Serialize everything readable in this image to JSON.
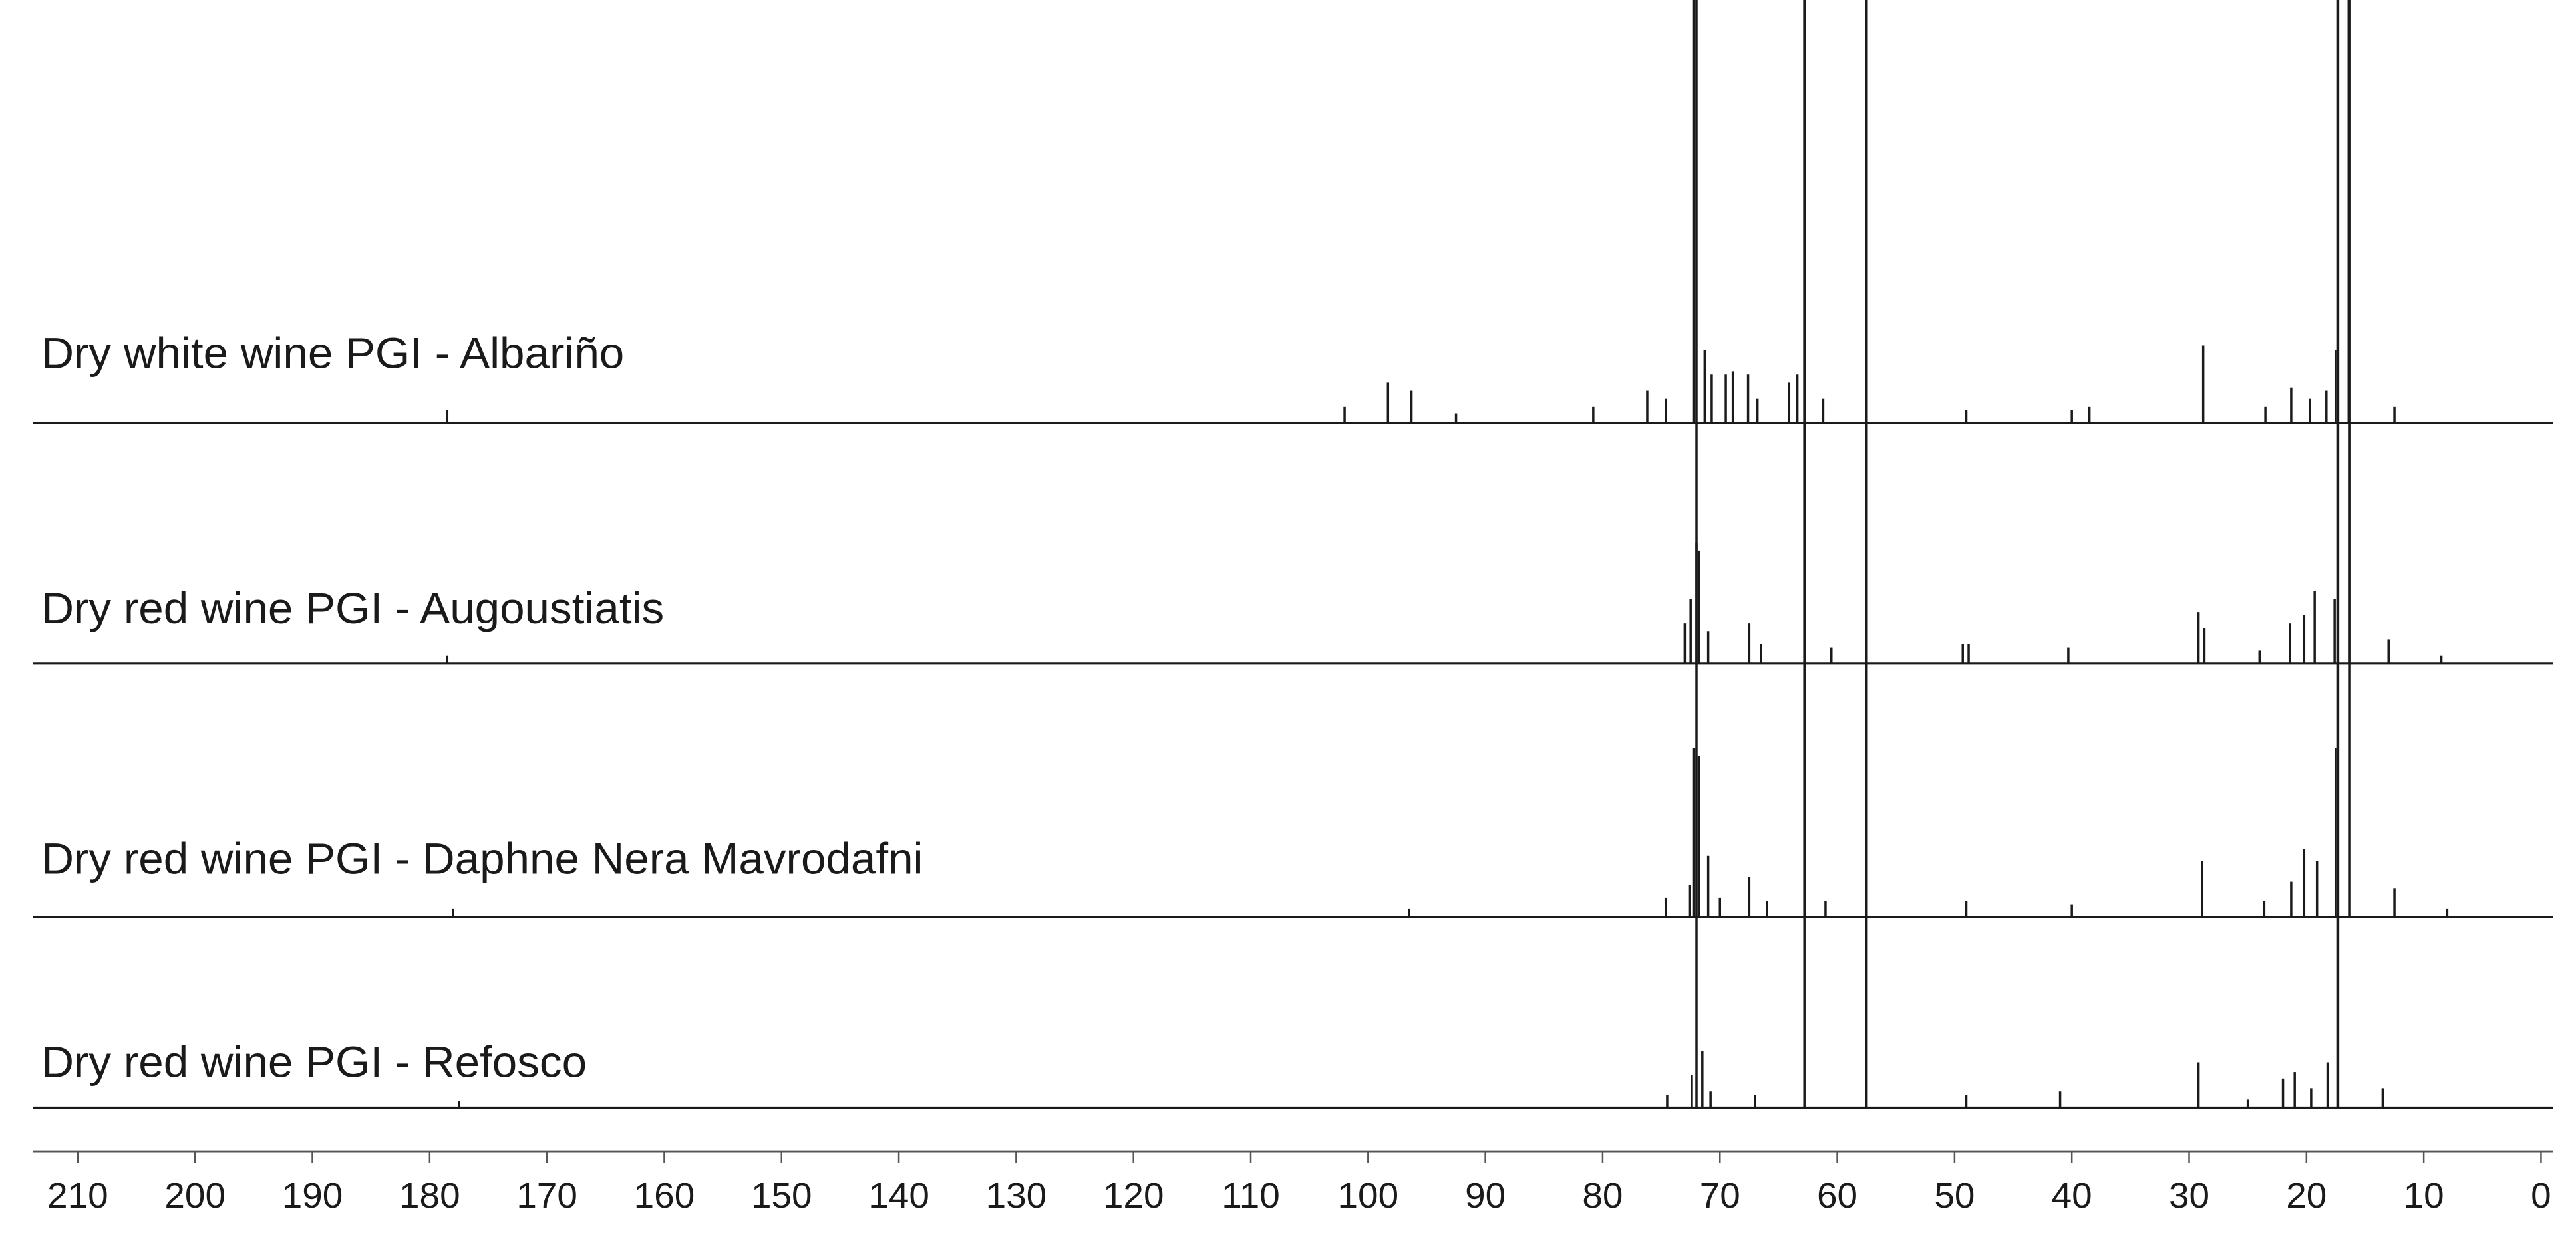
{
  "chart_data": {
    "type": "spectrum",
    "xlim": [
      213.8,
      -1
    ],
    "xticks": [
      210,
      200,
      190,
      180,
      170,
      160,
      150,
      140,
      130,
      120,
      110,
      100,
      90,
      80,
      70,
      60,
      50,
      40,
      30,
      20,
      10,
      0
    ],
    "color": "#1a1a1a",
    "series": [
      {
        "name": "Dry white wine PGI - Albariño",
        "x": [
          178.5,
          102,
          98.3,
          96.3,
          92.5,
          80.8,
          76.2,
          74.6,
          72.2,
          71.3,
          70.7,
          69.5,
          68.9,
          67.6,
          66.8,
          64.1,
          63.4,
          62.8,
          61.2,
          57.5,
          49,
          40,
          38.5,
          28.8,
          23.5,
          21.3,
          19.7,
          18.3,
          17.5,
          16.4,
          12.5
        ],
        "values": [
          8,
          10,
          25,
          20,
          6,
          10,
          20,
          15,
          700,
          45,
          30,
          30,
          32,
          30,
          15,
          25,
          30,
          700,
          15,
          700,
          8,
          8,
          10,
          48,
          10,
          22,
          15,
          20,
          45,
          700,
          10
        ]
      },
      {
        "name": "Dry red wine PGI - Augoustiatis",
        "x": [
          178.5,
          73,
          72.5,
          72,
          71.8,
          71,
          67.5,
          66.5,
          62.8,
          60.5,
          57.5,
          49.3,
          48.8,
          40.3,
          29.2,
          28.7,
          24,
          21.4,
          20.2,
          19.3,
          17.6,
          16.3,
          13,
          8.5
        ],
        "values": [
          5,
          25,
          40,
          75,
          70,
          20,
          25,
          12,
          700,
          10,
          700,
          12,
          12,
          10,
          32,
          22,
          8,
          25,
          30,
          45,
          40,
          700,
          15,
          5
        ]
      },
      {
        "name": "Dry red wine PGI - Daphne Nera Mavrodafni",
        "x": [
          178,
          96.5,
          74.6,
          72.6,
          72.2,
          71.8,
          71,
          70,
          67.5,
          66,
          62.8,
          61,
          57.5,
          49,
          40,
          28.9,
          23.6,
          21.3,
          20.2,
          19.1,
          17.5,
          16.3,
          12.5,
          8
        ],
        "values": [
          5,
          5,
          12,
          20,
          105,
          100,
          38,
          12,
          25,
          10,
          700,
          10,
          700,
          10,
          8,
          35,
          10,
          22,
          42,
          35,
          105,
          700,
          18,
          5
        ]
      },
      {
        "name": "Dry red wine PGI - Refosco",
        "x": [
          177.5,
          74.5,
          72.4,
          72,
          71.5,
          70.8,
          67,
          62.8,
          57.5,
          49,
          41,
          29.2,
          25,
          22,
          21,
          19.6,
          18.2,
          17.3,
          13.5
        ],
        "values": [
          4,
          8,
          20,
          700,
          35,
          10,
          8,
          700,
          700,
          8,
          10,
          28,
          5,
          18,
          22,
          12,
          28,
          700,
          12
        ]
      }
    ]
  }
}
